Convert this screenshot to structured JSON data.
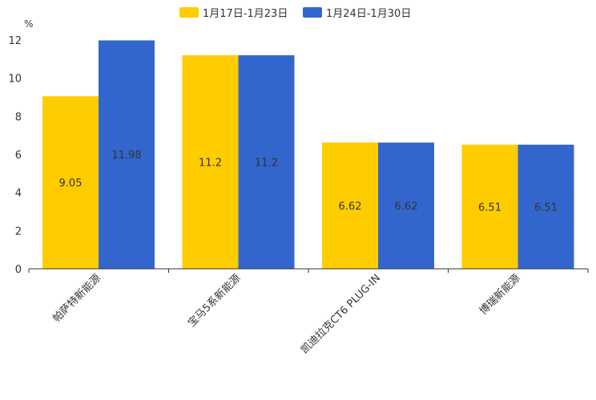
{
  "chart_data": {
    "type": "bar",
    "title": "",
    "xlabel": "",
    "ylabel": "%",
    "ylim": [
      0,
      12
    ],
    "yticks": [
      0,
      2,
      4,
      6,
      8,
      10,
      12
    ],
    "grid": false,
    "legend_position": "top-center",
    "categories": [
      "帕萨特新能源",
      "宝马5系新能源",
      "凯迪拉克CT6 PLUG-IN",
      "博瑞新能源"
    ],
    "series": [
      {
        "name": "1月17日-1月23日",
        "color": "#FFCC00",
        "values": [
          9.05,
          11.2,
          6.62,
          6.51
        ],
        "labels": [
          "9.05",
          "11.2",
          "6.62",
          "6.51"
        ]
      },
      {
        "name": "1月24日-1月30日",
        "color": "#3366CC",
        "values": [
          11.98,
          11.2,
          6.62,
          6.51
        ],
        "labels": [
          "11.98",
          "11.2",
          "6.62",
          "6.51"
        ]
      }
    ]
  }
}
